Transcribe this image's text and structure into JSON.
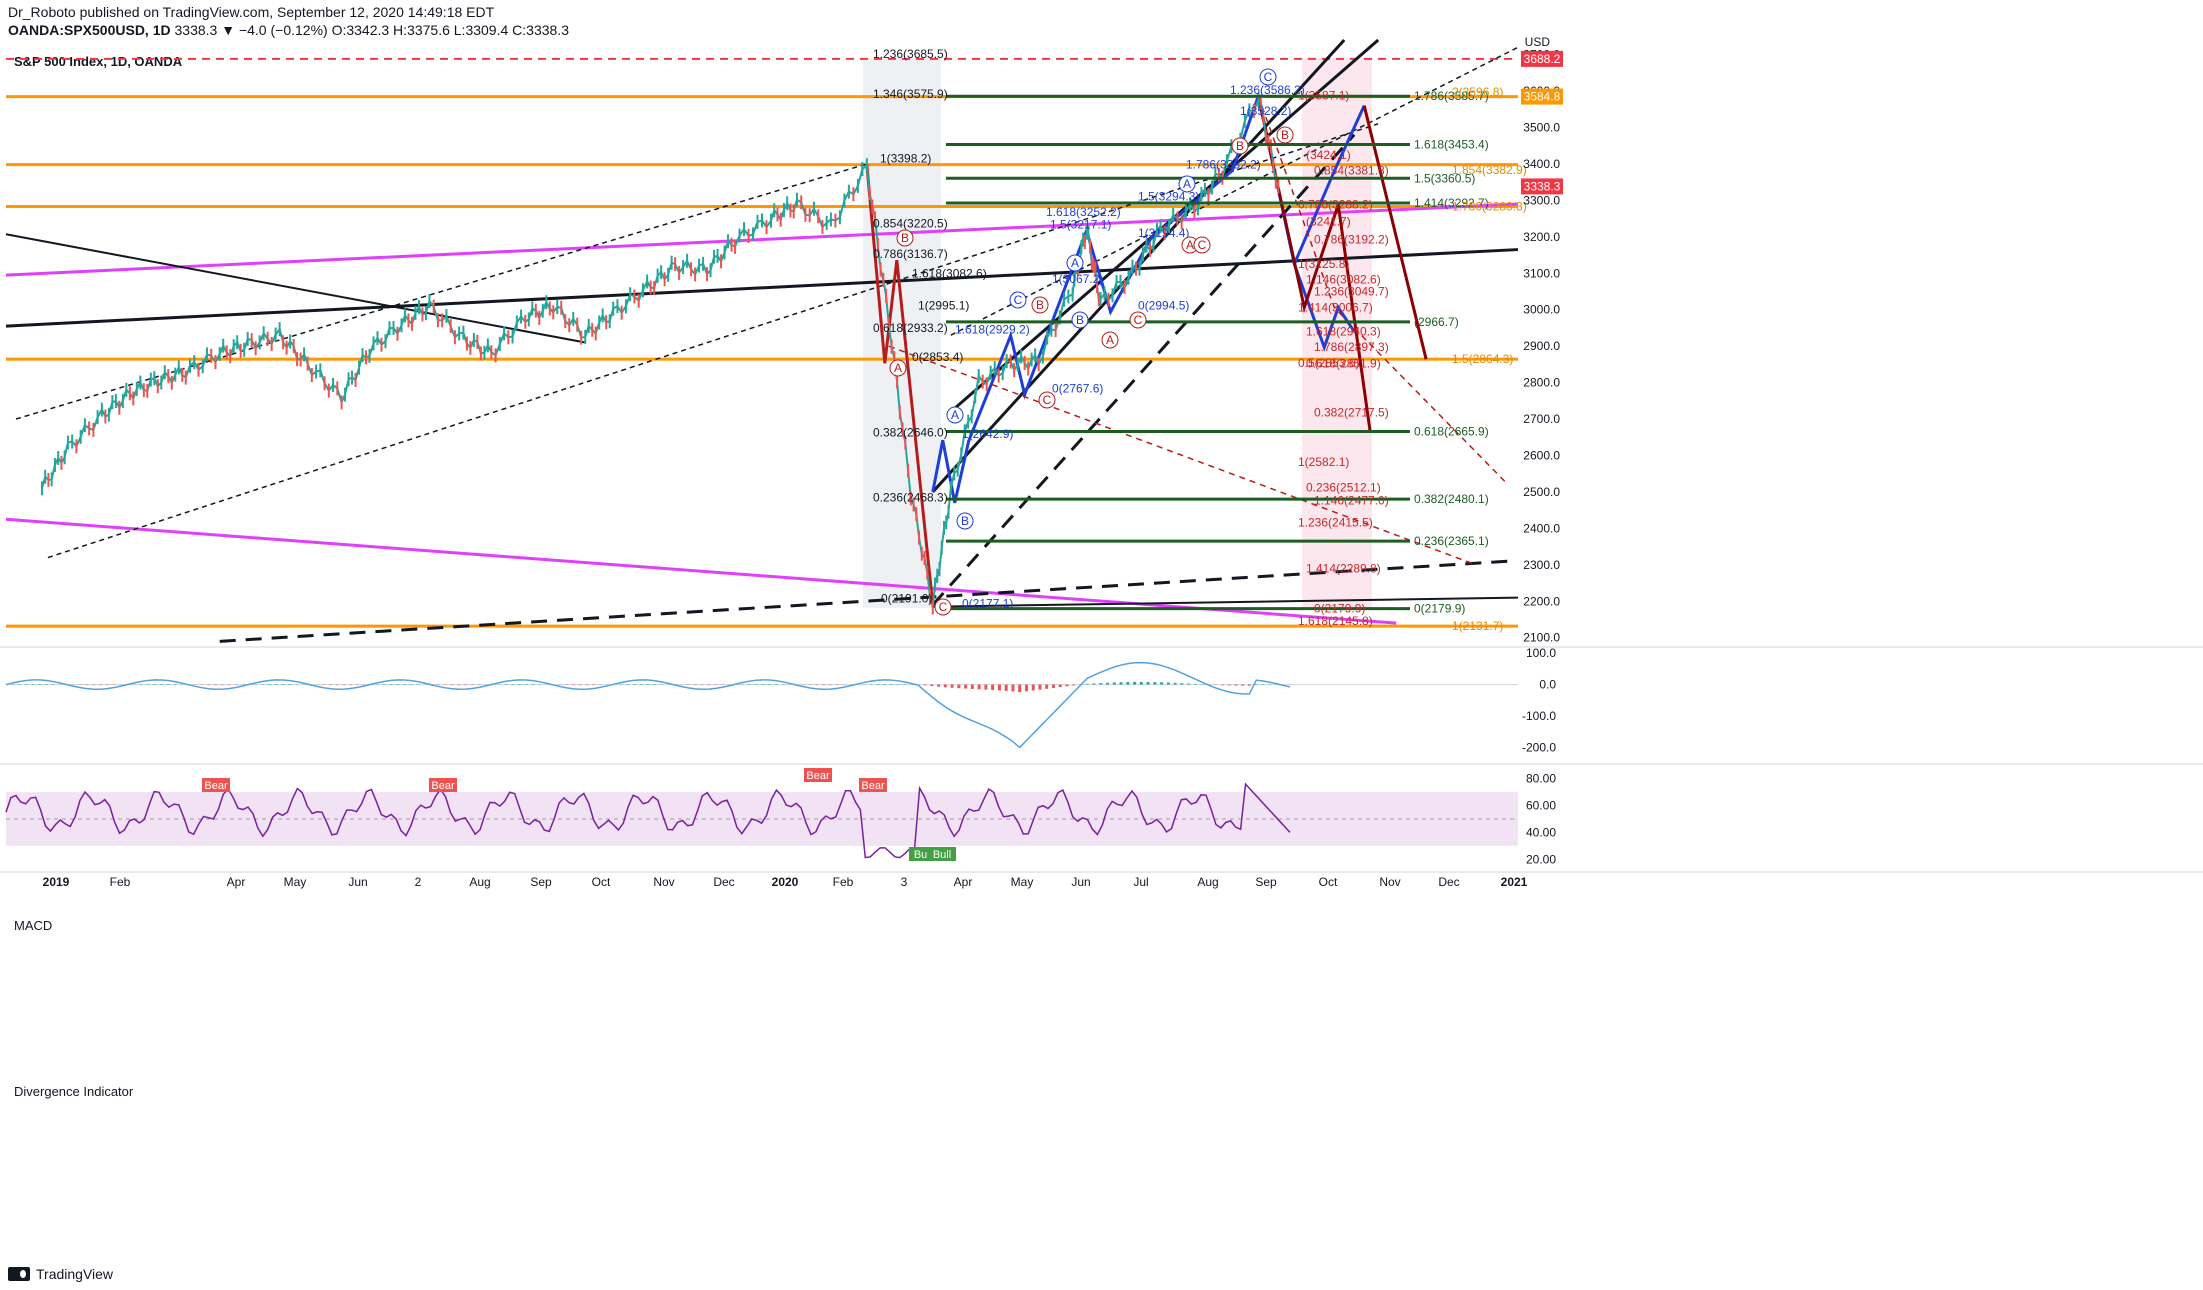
{
  "header": {
    "publisher_line": "Dr_Roboto published on TradingView.com, September 12, 2020 14:49:18 EDT",
    "symbol": "OANDA:SPX500USD, 1D",
    "quote": "3338.3 ▼ −4.0 (−0.12%) O:3342.3 H:3375.6 L:3309.4 C:3338.3"
  },
  "footer": {
    "brand": "TradingView"
  },
  "chart_data": [
    {
      "type": "line",
      "title": "S&P 500 Index, 1D, OANDA",
      "currency": "USD",
      "x": [
        "2019-01-02",
        "2019-01-15",
        "2019-02-01",
        "2019-02-15",
        "2019-03-01",
        "2019-03-15",
        "2019-04-01",
        "2019-04-15",
        "2019-05-01",
        "2019-05-15",
        "2019-06-01",
        "2019-06-15",
        "2019-07-01",
        "2019-07-15",
        "2019-08-01",
        "2019-08-15",
        "2019-09-01",
        "2019-09-15",
        "2019-10-01",
        "2019-10-15",
        "2019-11-01",
        "2019-11-15",
        "2019-12-01",
        "2019-12-15",
        "2020-01-02",
        "2020-01-15",
        "2020-02-01",
        "2020-02-19",
        "2020-03-01",
        "2020-03-12",
        "2020-03-23",
        "2020-04-01",
        "2020-04-15",
        "2020-05-01",
        "2020-05-15",
        "2020-06-01",
        "2020-06-08",
        "2020-06-15",
        "2020-07-01",
        "2020-07-15",
        "2020-08-01",
        "2020-08-15",
        "2020-09-02",
        "2020-09-12"
      ],
      "values": [
        2510,
        2620,
        2710,
        2770,
        2805,
        2830,
        2880,
        2905,
        2930,
        2850,
        2760,
        2890,
        2960,
        3010,
        2920,
        2880,
        2980,
        3010,
        2930,
        2990,
        3060,
        3120,
        3110,
        3190,
        3250,
        3290,
        3230,
        3390,
        2970,
        2500,
        2190,
        2500,
        2800,
        2850,
        2860,
        3060,
        3220,
        3020,
        3100,
        3220,
        3280,
        3380,
        3585,
        3338
      ],
      "ylim": [
        2080,
        3740
      ],
      "y_ticks": [
        2100,
        2200,
        2300,
        2400,
        2500,
        2600,
        2700,
        2800,
        2900,
        3000,
        3100,
        3200,
        3300,
        3400,
        3500,
        3600,
        3700
      ],
      "x_ticks": [
        "2019",
        "Feb",
        "Apr",
        "May",
        "Jun",
        "2",
        "Aug",
        "Sep",
        "Oct",
        "Nov",
        "Dec",
        "2020",
        "Feb",
        "3",
        "Apr",
        "May",
        "Jun",
        "Jul",
        "Aug",
        "Sep",
        "Oct",
        "Nov",
        "Dec",
        "2021"
      ],
      "price_tags": [
        {
          "label": "3688.2",
          "value": 3688.2,
          "color": "#f23645"
        },
        {
          "label": "3584.8",
          "value": 3584.8,
          "color": "#ff9800"
        },
        {
          "label": "3338.3",
          "value": 3338.3,
          "color": "#f23645"
        }
      ],
      "horizontal_levels": [
        {
          "value": 3688.2,
          "style": "dashed",
          "color": "#f23645"
        },
        {
          "value": 3584.8,
          "style": "solid",
          "color": "#ff9800"
        },
        {
          "value": 3398.2,
          "style": "solid",
          "color": "#ff9800"
        },
        {
          "value": 3283.3,
          "style": "solid",
          "color": "#ff9800"
        },
        {
          "value": 2864.3,
          "style": "solid",
          "color": "#ff9800"
        },
        {
          "value": 2131.7,
          "style": "solid",
          "color": "#ff9800"
        }
      ],
      "fib_left": [
        "1.236(3685.5)",
        "1.346(3575.9)",
        "1(3398.2)",
        "0.854(3220.5)",
        "0.786(3136.7)",
        "1.618(3082.6)",
        "1(2995.1)",
        "0.618(2933.2)",
        "0(2853.4)",
        "0.382(2646.0)",
        "0.236(2468.3)",
        "0(2191.0)",
        "0(2177.1)",
        "1.618(2929.2)",
        "0(2767.6)",
        "1(2642.9)",
        "1.5(3217.1)",
        "1.618(3252.2)",
        "1(3067.2)",
        "1(3194.4)",
        "0(2994.5)",
        "1.5(3294.3)",
        "1.786(3382.2)",
        "1.236(3586.2)",
        "1(3528.2)"
      ],
      "fib_right_green": [
        "1.786(3585.7)",
        "1.618(3453.4)",
        "1.5(3360.5)",
        "1.414(3292.7)",
        "(2966.7)",
        "0.618(2665.9)",
        "0.382(2480.1)",
        "0.236(2365.1)",
        "0(2179.9)"
      ],
      "fib_right_orange": [
        "2(3596.8)",
        "1.854(3382.9)",
        "1.786(3283.3)",
        "1.5(2864.3)",
        "1(2131.7)"
      ],
      "fib_right_red": [
        "1(3587.1)",
        "(3424.1)",
        "0.854(3381.8)",
        "0.786(3288.2)",
        "(3241.7)",
        "0.786(3192.2)",
        "1(3125.8)",
        "1.146(3082.6)",
        "1.236(3049.7)",
        "1.414(3006.7)",
        "1.618(2940.3)",
        "1.786(2897.3)",
        "0.5(2853.6)",
        "0.618(2851.9)",
        "0.382(2717.5)",
        "1(2582.1)",
        "0.236(2512.1)",
        "1.146(2477.0)",
        "1.236(2415.5)",
        "1.414(2289.8)",
        "0(2179.9)",
        "1.618(2145.8)"
      ],
      "wave_labels": [
        "(A)",
        "(B)",
        "(C)",
        "A",
        "B",
        "C",
        "(A)",
        "(B)",
        "(C)",
        "A",
        "B",
        "C",
        "(A)",
        "(B)",
        "(C)",
        "(A)",
        "(C)",
        "(B)"
      ]
    },
    {
      "type": "area",
      "title": "MACD",
      "y_ticks": [
        100.0,
        0.0,
        -100.0,
        -200.0
      ],
      "ylim": [
        -240,
        110
      ]
    },
    {
      "type": "line",
      "title": "Divergence Indicator",
      "y_ticks": [
        80.0,
        60.0,
        40.0,
        20.0
      ],
      "ylim": [
        12,
        88
      ],
      "band": [
        30,
        70
      ],
      "annotations": [
        "Bear",
        "Bear",
        "Bear",
        "Bear",
        "Bull",
        "Bull"
      ]
    }
  ]
}
